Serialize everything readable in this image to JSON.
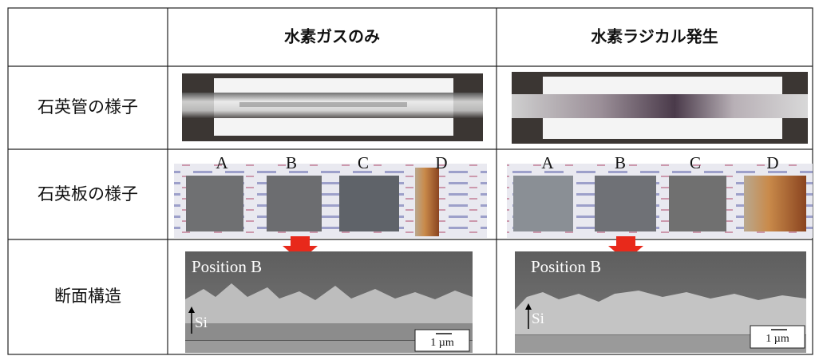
{
  "table": {
    "columns": [
      "水素ガスのみ",
      "水素ラジカル発生"
    ],
    "rows": [
      {
        "label": "石英管の様子"
      },
      {
        "label": "石英板の様子",
        "samples": [
          [
            "A",
            "B",
            "C",
            "D"
          ],
          [
            "A",
            "B",
            "C",
            "D"
          ]
        ]
      },
      {
        "label": "断面構造",
        "position": [
          "Position B",
          "Position B"
        ],
        "substrate": [
          "Si",
          "Si"
        ],
        "scale": [
          "1 µm",
          "1 µm"
        ]
      }
    ]
  }
}
